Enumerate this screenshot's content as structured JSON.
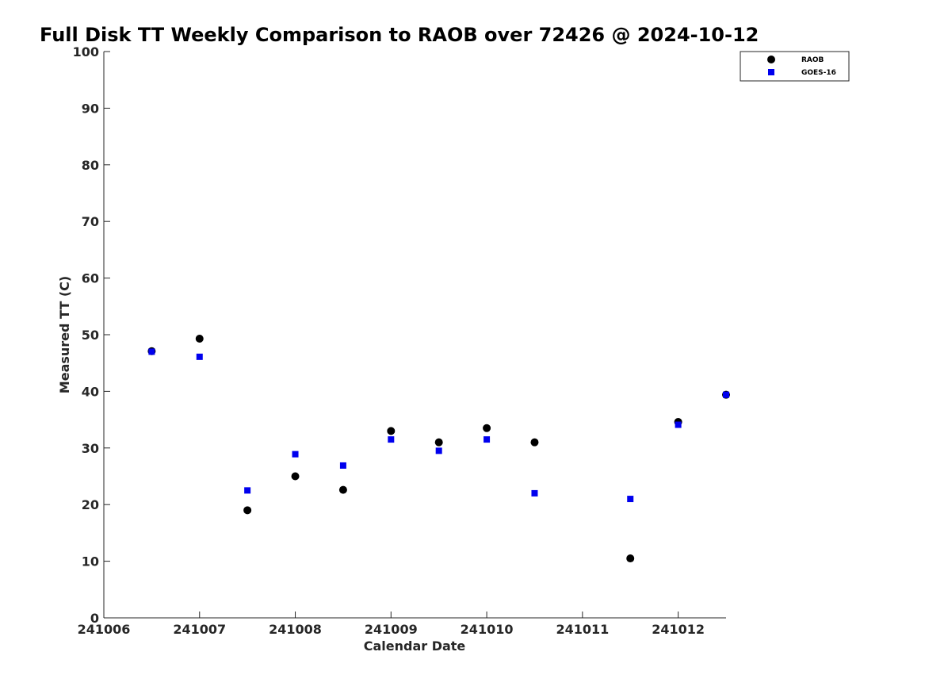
{
  "chart_data": {
    "type": "scatter",
    "title": "Full Disk TT Weekly Comparison to RAOB over 72426 @ 2024-10-12",
    "xlabel": "Calendar Date",
    "ylabel": "Measured TT (C)",
    "xlim": [
      241006,
      241012.5
    ],
    "ylim": [
      0,
      100
    ],
    "x_ticks": [
      241006,
      241007,
      241008,
      241009,
      241010,
      241011,
      241012
    ],
    "x_tick_labels": [
      "241006",
      "241007",
      "241008",
      "241009",
      "241010",
      "241011",
      "241012"
    ],
    "y_ticks": [
      0,
      10,
      20,
      30,
      40,
      50,
      60,
      70,
      80,
      90,
      100
    ],
    "y_tick_labels": [
      "0",
      "10",
      "20",
      "30",
      "40",
      "50",
      "60",
      "70",
      "80",
      "90",
      "100"
    ],
    "grid": false,
    "legend_position": "top-right",
    "series": [
      {
        "name": "RAOB",
        "marker": "circle",
        "color": "#000000",
        "x": [
          241006.5,
          241007,
          241007.5,
          241008,
          241008.5,
          241009,
          241009.5,
          241010,
          241010.5,
          241011.5,
          241012,
          241012.5
        ],
        "y": [
          47.1,
          49.3,
          19.0,
          25.0,
          22.6,
          33.0,
          31.0,
          33.5,
          31.0,
          10.5,
          34.6,
          39.4
        ]
      },
      {
        "name": "GOES-16",
        "marker": "square",
        "color": "#0000ee",
        "x": [
          241006.5,
          241007,
          241007.5,
          241008,
          241008.5,
          241009,
          241009.5,
          241010,
          241010.5,
          241011.5,
          241012,
          241012.5
        ],
        "y": [
          47.0,
          46.1,
          22.5,
          28.9,
          26.9,
          31.5,
          29.5,
          31.5,
          22.0,
          21.0,
          34.1,
          39.4
        ]
      }
    ]
  }
}
